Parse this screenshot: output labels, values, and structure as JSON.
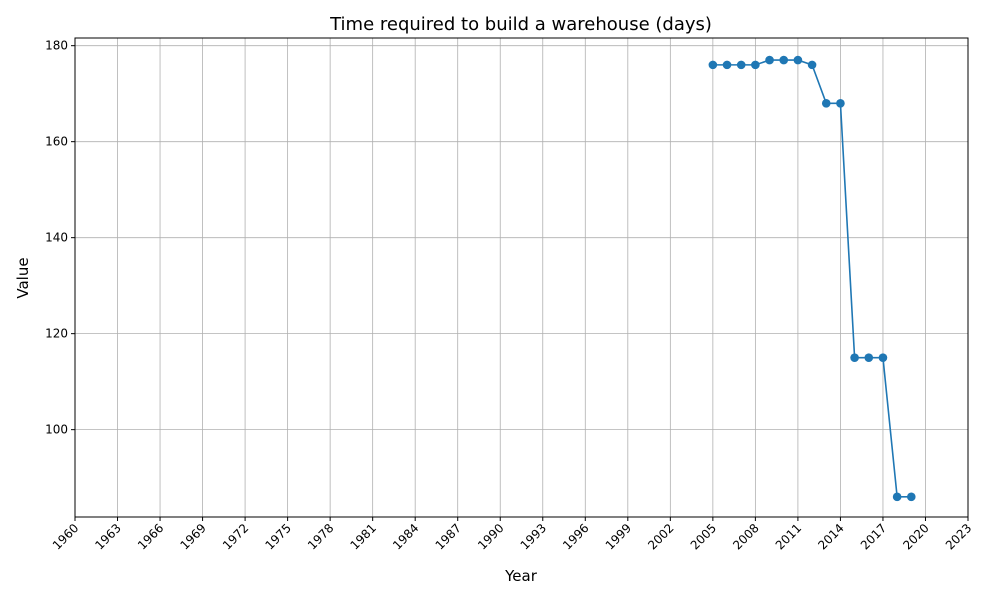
{
  "chart_data": {
    "type": "line",
    "title": "Time required to build a warehouse (days)",
    "xlabel": "Year",
    "ylabel": "Value",
    "xlim": [
      1960,
      2023
    ],
    "ylim": [
      81.8,
      181.6
    ],
    "x_ticks": [
      "1960",
      "1963",
      "1966",
      "1969",
      "1972",
      "1975",
      "1978",
      "1981",
      "1984",
      "1987",
      "1990",
      "1993",
      "1996",
      "1999",
      "2002",
      "2005",
      "2008",
      "2011",
      "2014",
      "2017",
      "2020",
      "2023"
    ],
    "y_ticks": [
      "100",
      "120",
      "140",
      "160",
      "180"
    ],
    "grid": true,
    "color": "#1f77b4",
    "series": [
      {
        "x": [
          2005,
          2006,
          2007,
          2008,
          2009,
          2010,
          2011,
          2012,
          2013,
          2014,
          2015,
          2016,
          2017,
          2018,
          2019
        ],
        "values": [
          176,
          176,
          176,
          176,
          177,
          177,
          177,
          176,
          168,
          168,
          115,
          115,
          115,
          86,
          86
        ]
      }
    ]
  }
}
